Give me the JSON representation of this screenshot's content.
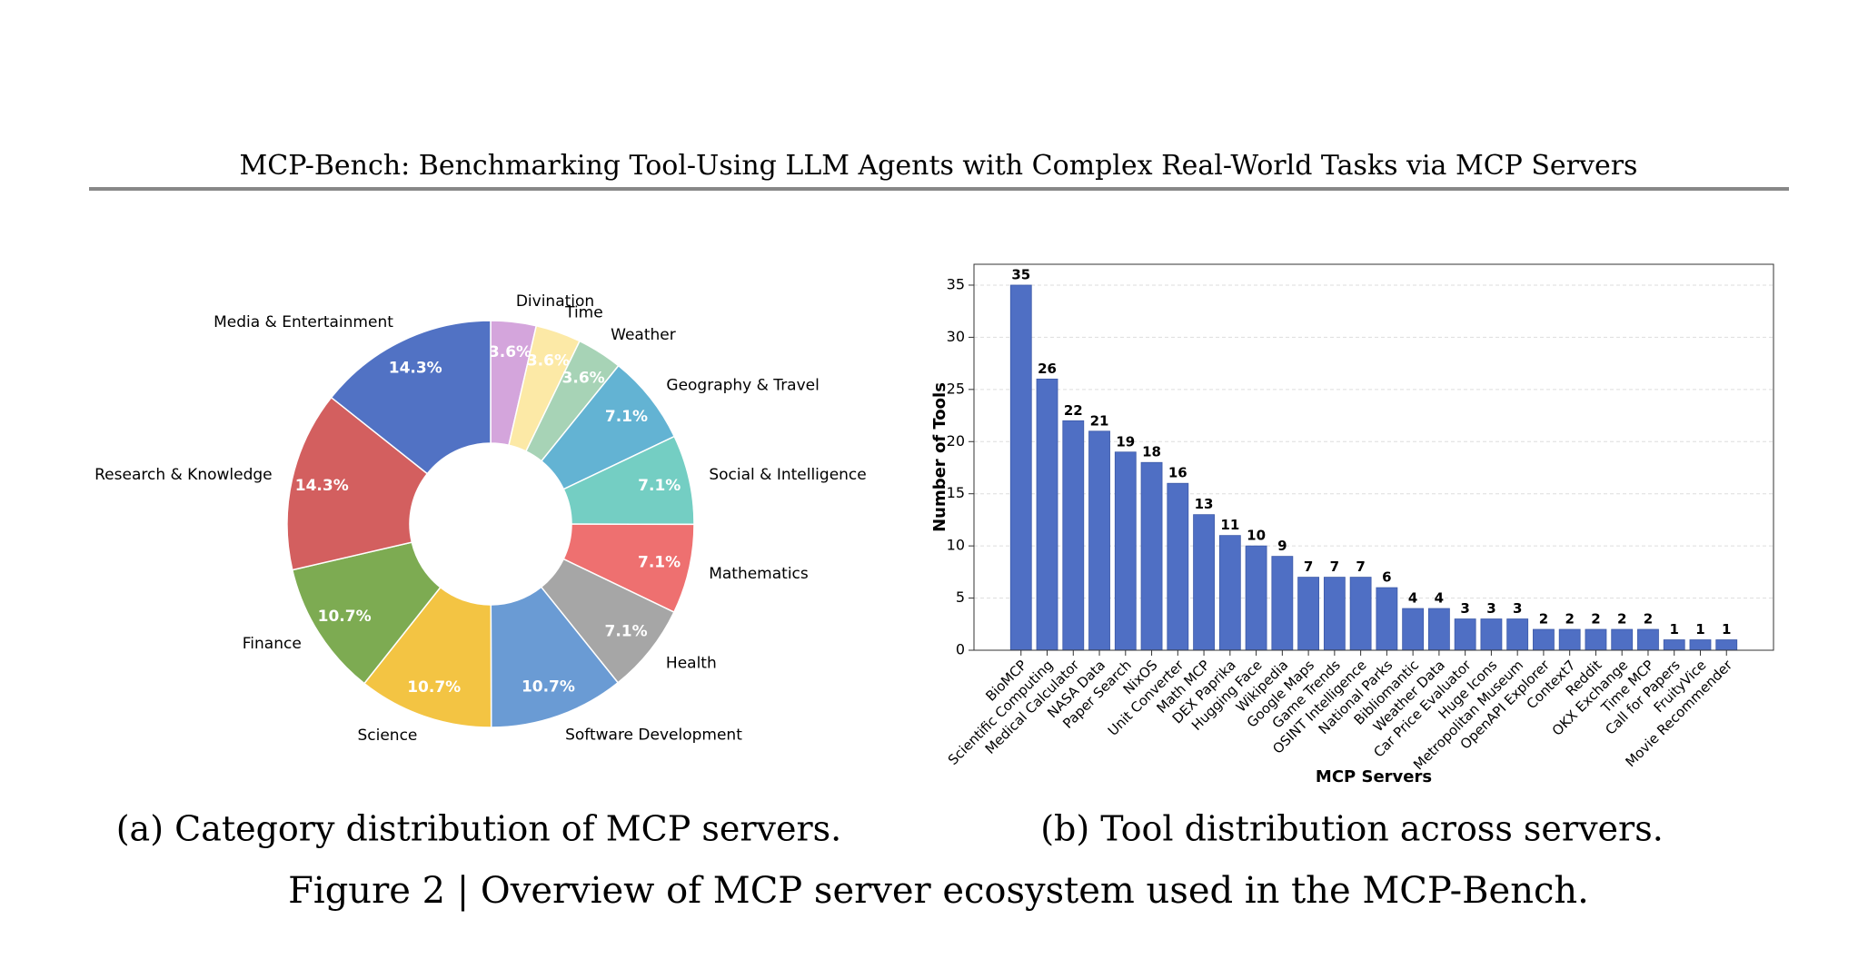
{
  "header_title": "MCP-Bench: Benchmarking Tool-Using LLM Agents with Complex Real-World Tasks via MCP Servers",
  "figure_caption": "Figure 2 | Overview of MCP server ecosystem used in the MCP-Bench.",
  "chart_data": [
    {
      "type": "donut",
      "caption": "(a) Category distribution of MCP servers.",
      "categories": [
        "Divination",
        "Time",
        "Weather",
        "Geography & Travel",
        "Social & Intelligence",
        "Mathematics",
        "Health",
        "Software Development",
        "Science",
        "Finance",
        "Research & Knowledge",
        "Media & Entertainment"
      ],
      "values": [
        3.6,
        3.6,
        3.6,
        7.1,
        7.1,
        7.1,
        7.1,
        10.7,
        10.7,
        10.7,
        14.3,
        14.3
      ],
      "value_labels": [
        "3.6%",
        "3.6%",
        "3.6%",
        "7.1%",
        "7.1%",
        "7.1%",
        "7.1%",
        "10.7%",
        "10.7%",
        "10.7%",
        "14.3%",
        "14.3%"
      ],
      "colors": [
        "#d4a5dc",
        "#fce9a6",
        "#a7d3b6",
        "#63b3d3",
        "#74cec3",
        "#ee7070",
        "#a6a6a6",
        "#6a9bd4",
        "#f3c443",
        "#7dab52",
        "#d35f5f",
        "#5172c4"
      ]
    },
    {
      "type": "bar",
      "caption": "(b) Tool distribution across servers.",
      "xlabel": "MCP Servers",
      "ylabel": "Number of Tools",
      "categories": [
        "BioMCP",
        "Scientific Computing",
        "Medical Calculator",
        "NASA Data",
        "Paper Search",
        "NixOS",
        "Unit Converter",
        "Math MCP",
        "DEX Paprika",
        "Hugging Face",
        "Wikipedia",
        "Google Maps",
        "Game Trends",
        "OSINT Intelligence",
        "National Parks",
        "Bibliomantic",
        "Weather Data",
        "Car Price Evaluator",
        "Huge Icons",
        "Metropolitan Museum",
        "OpenAPI Explorer",
        "Context7",
        "Reddit",
        "OKX Exchange",
        "Time MCP",
        "Call for Papers",
        "FruityVice",
        "Movie Recommender"
      ],
      "values": [
        35,
        26,
        22,
        21,
        19,
        18,
        16,
        13,
        11,
        10,
        9,
        7,
        7,
        7,
        6,
        4,
        4,
        3,
        3,
        3,
        2,
        2,
        2,
        2,
        2,
        1,
        1,
        1
      ],
      "color": "#4f6fc4",
      "ylim": [
        0,
        37
      ],
      "yticks": [
        0,
        5,
        10,
        15,
        20,
        25,
        30,
        35
      ],
      "grid": true
    }
  ]
}
